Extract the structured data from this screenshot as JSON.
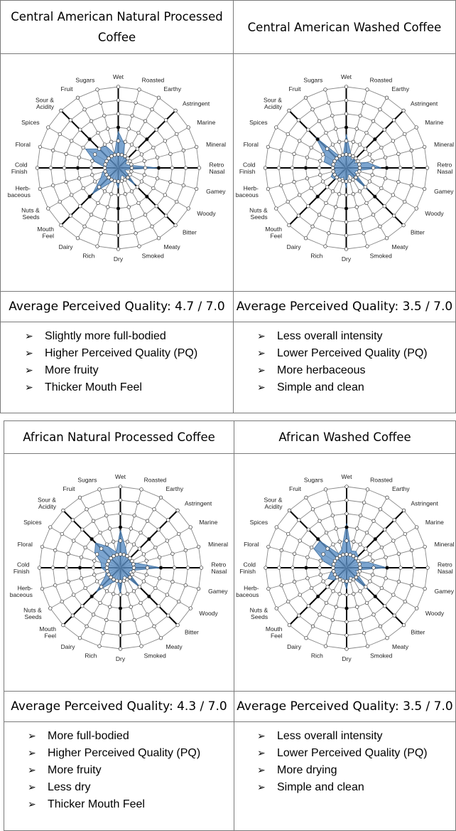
{
  "chart_data": [
    {
      "type": "radar",
      "title": "Central American Natural Processed Coffee",
      "axes": [
        "Wet",
        "Roasted",
        "Earthy",
        "Astringent",
        "Marine",
        "Mineral",
        "Retro\nNasal",
        "Gamey",
        "Woody",
        "Bitter",
        "Meaty",
        "Smoked",
        "Dry",
        "Rich",
        "Dairy",
        "Mouth\nFeel",
        "Nuts &\nSeeds",
        "Herb-\nbaceous",
        "Cold\nFinish",
        "Floral",
        "Spices",
        "Sour &\nAcidity",
        "Fruit",
        "Sugars"
      ],
      "values": [
        2.7,
        1.8,
        0.8,
        1.0,
        0.6,
        0.8,
        3.0,
        0.5,
        0.7,
        1.8,
        0.6,
        0.7,
        1.5,
        0.9,
        1.3,
        2.7,
        1.5,
        1.2,
        0.9,
        1.8,
        2.8,
        2.0,
        1.9,
        1.1
      ],
      "scale_max": 6,
      "summary_label": "Average Perceived Quality: ",
      "summary_value": "4.7 / 7.0",
      "notes": [
        "Slightly more full-bodied",
        "Higher Perceived Quality (PQ)",
        "More fruity",
        "Thicker Mouth Feel"
      ]
    },
    {
      "type": "radar",
      "title": "Central American Washed Coffee",
      "axes": [
        "Wet",
        "Roasted",
        "Earthy",
        "Astringent",
        "Marine",
        "Mineral",
        "Retro\nNasal",
        "Gamey",
        "Woody",
        "Bitter",
        "Meaty",
        "Smoked",
        "Dry",
        "Rich",
        "Dairy",
        "Mouth\nFeel",
        "Nuts &\nSeeds",
        "Herb-\nbaceous",
        "Cold\nFinish",
        "Floral",
        "Spices",
        "Sour &\nAcidity",
        "Fruit",
        "Sugars"
      ],
      "values": [
        2.5,
        1.2,
        0.7,
        1.0,
        0.7,
        1.6,
        2.6,
        0.8,
        0.7,
        2.3,
        0.6,
        0.5,
        1.5,
        0.7,
        0.9,
        1.2,
        1.3,
        1.0,
        0.8,
        1.7,
        1.8,
        3.2,
        1.0,
        0.9
      ],
      "scale_max": 6,
      "summary_label": "Average Perceived Quality: ",
      "summary_value": "3.5 / 7.0",
      "notes": [
        "Less overall intensity",
        "Lower Perceived Quality (PQ)",
        "More herbaceous",
        "Simple and clean"
      ]
    },
    {
      "type": "radar",
      "title": "African Natural Processed Coffee",
      "axes": [
        "Wet",
        "Roasted",
        "Earthy",
        "Astringent",
        "Marine",
        "Mineral",
        "Retro\nNasal",
        "Gamey",
        "Woody",
        "Bitter",
        "Meaty",
        "Smoked",
        "Dry",
        "Rich",
        "Dairy",
        "Mouth\nFeel",
        "Nuts &\nSeeds",
        "Herb-\nbaceous",
        "Cold\nFinish",
        "Floral",
        "Spices",
        "Sour &\nAcidity",
        "Fruit",
        "Sugars"
      ],
      "values": [
        2.8,
        1.5,
        1.0,
        1.0,
        0.8,
        1.3,
        3.0,
        0.8,
        0.7,
        2.1,
        0.7,
        0.7,
        1.9,
        1.0,
        1.3,
        2.5,
        1.3,
        1.1,
        1.4,
        1.5,
        2.2,
        2.6,
        1.8,
        1.2
      ],
      "scale_max": 6,
      "summary_label": "Average Perceived Quality: ",
      "summary_value": "4.3 / 7.0",
      "notes": [
        "More full-bodied",
        "Higher Perceived Quality (PQ)",
        "More fruity",
        "Less dry",
        "Thicker Mouth Feel"
      ]
    },
    {
      "type": "radar",
      "title": "African Washed Coffee",
      "axes": [
        "Wet",
        "Roasted",
        "Earthy",
        "Astringent",
        "Marine",
        "Mineral",
        "Retro\nNasal",
        "Gamey",
        "Woody",
        "Bitter",
        "Meaty",
        "Smoked",
        "Dry",
        "Rich",
        "Dairy",
        "Mouth\nFeel",
        "Nuts &\nSeeds",
        "Herb-\nbaceous",
        "Cold\nFinish",
        "Floral",
        "Spices",
        "Sour &\nAcidity",
        "Fruit",
        "Sugars"
      ],
      "values": [
        3.3,
        1.3,
        1.4,
        1.2,
        0.9,
        1.6,
        3.0,
        0.7,
        0.9,
        2.3,
        0.8,
        0.7,
        1.6,
        0.9,
        0.8,
        1.3,
        1.6,
        1.2,
        0.9,
        1.7,
        2.8,
        2.8,
        1.2,
        1.4
      ],
      "scale_max": 6,
      "summary_label": "Average Perceived Quality: ",
      "summary_value": "3.5 / 7.0",
      "notes": [
        "Less overall intensity",
        "Lower Perceived Quality (PQ)",
        "More drying",
        "Simple and clean"
      ]
    }
  ],
  "colors": {
    "fill": "#5b8fc4",
    "stroke": "#3f6f9f",
    "grid": "#888888",
    "axis_major": "#000000",
    "border": "#7a7a7a"
  },
  "icons": {
    "bullet": "arrow-bullet-icon"
  }
}
